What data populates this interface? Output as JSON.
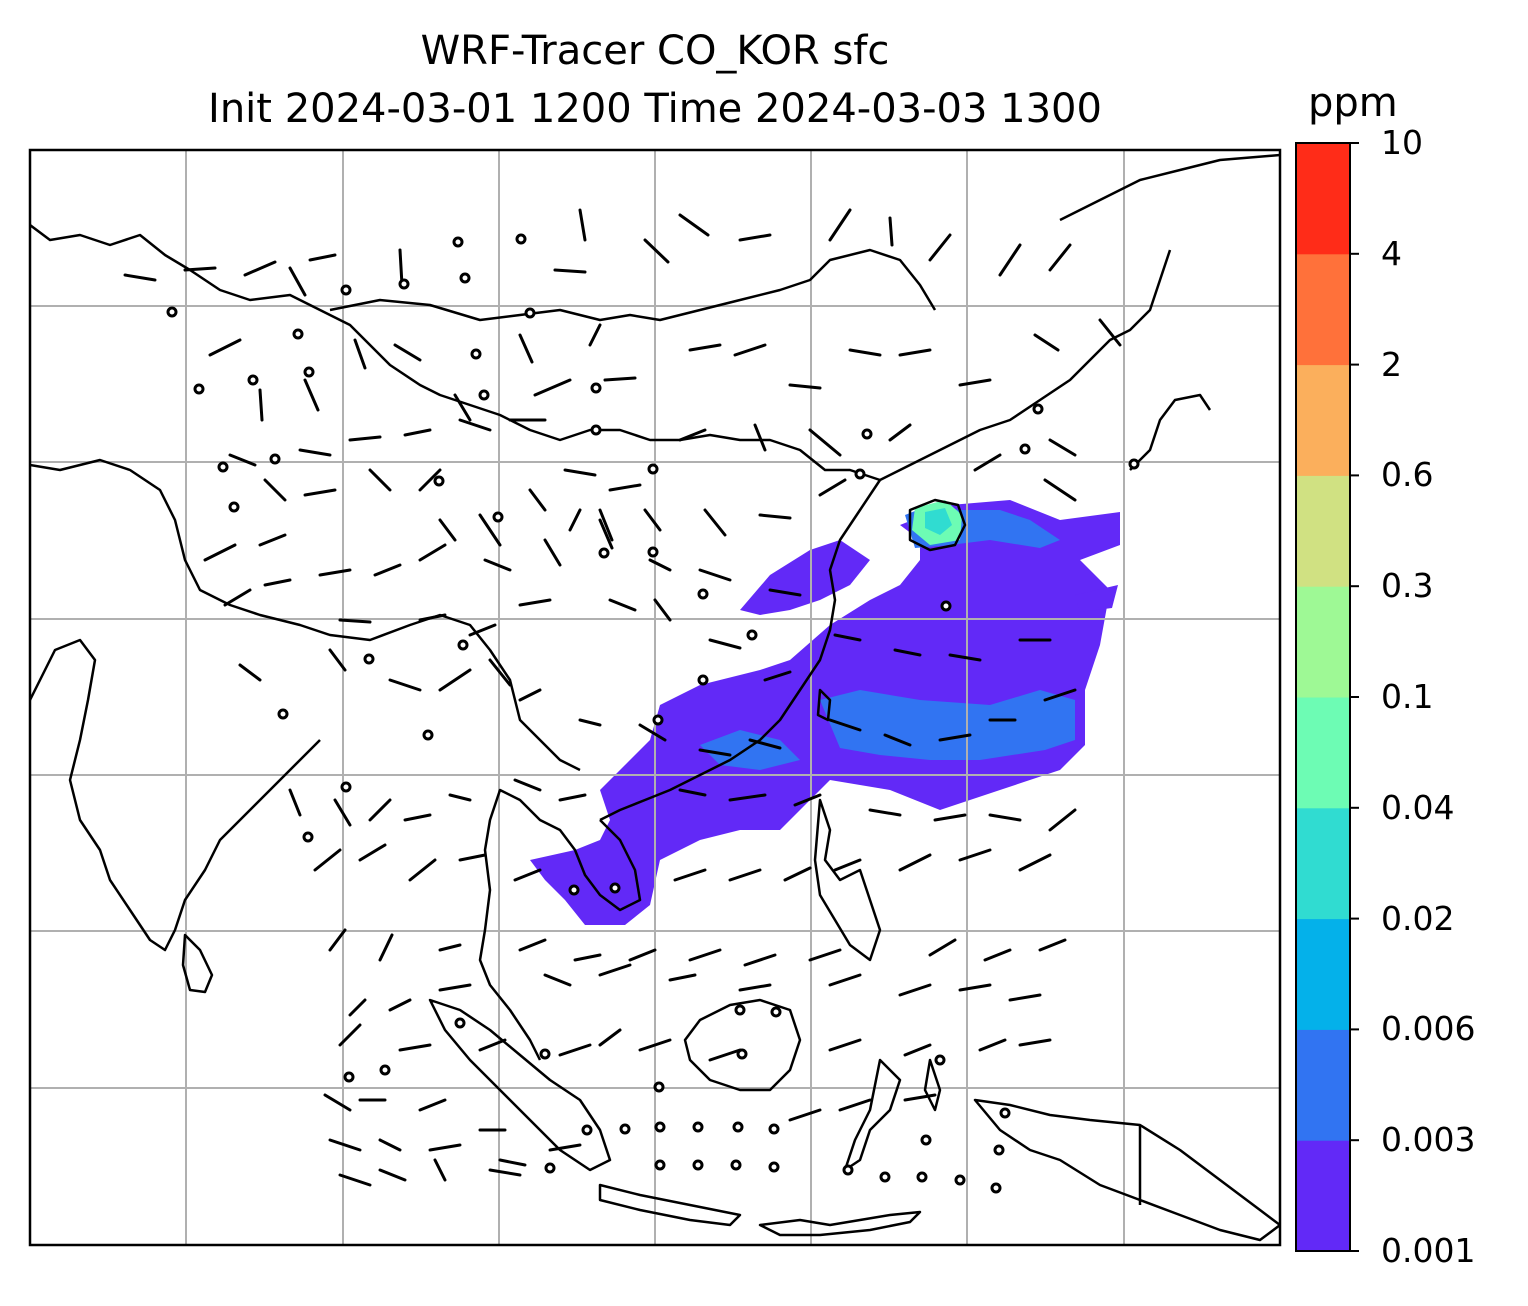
{
  "title": {
    "line1": "WRF-Tracer CO_KOR sfc",
    "line2": "Init 2024-03-01 1200 Time 2024-03-03 1300"
  },
  "colorbar": {
    "unit": "ppm",
    "ticks": [
      "0.001",
      "0.003",
      "0.006",
      "0.02",
      "0.04",
      "0.1",
      "0.3",
      "0.6",
      "2",
      "4",
      "10"
    ],
    "colors": [
      "#6229f7",
      "#3174f2",
      "#04b1ea",
      "#30dcd1",
      "#6dfcb4",
      "#9ef995",
      "#d0e182",
      "#fbaf5c",
      "#ff713a",
      "#ff2c18"
    ]
  },
  "map": {
    "gridlines": true,
    "coastline_color": "#000000",
    "grid_color": "#b0b0b0",
    "tracer_plume": {
      "main_level": "0.001–0.003",
      "inner_level": "0.003–0.006",
      "core_level": "0.04–0.1"
    }
  }
}
